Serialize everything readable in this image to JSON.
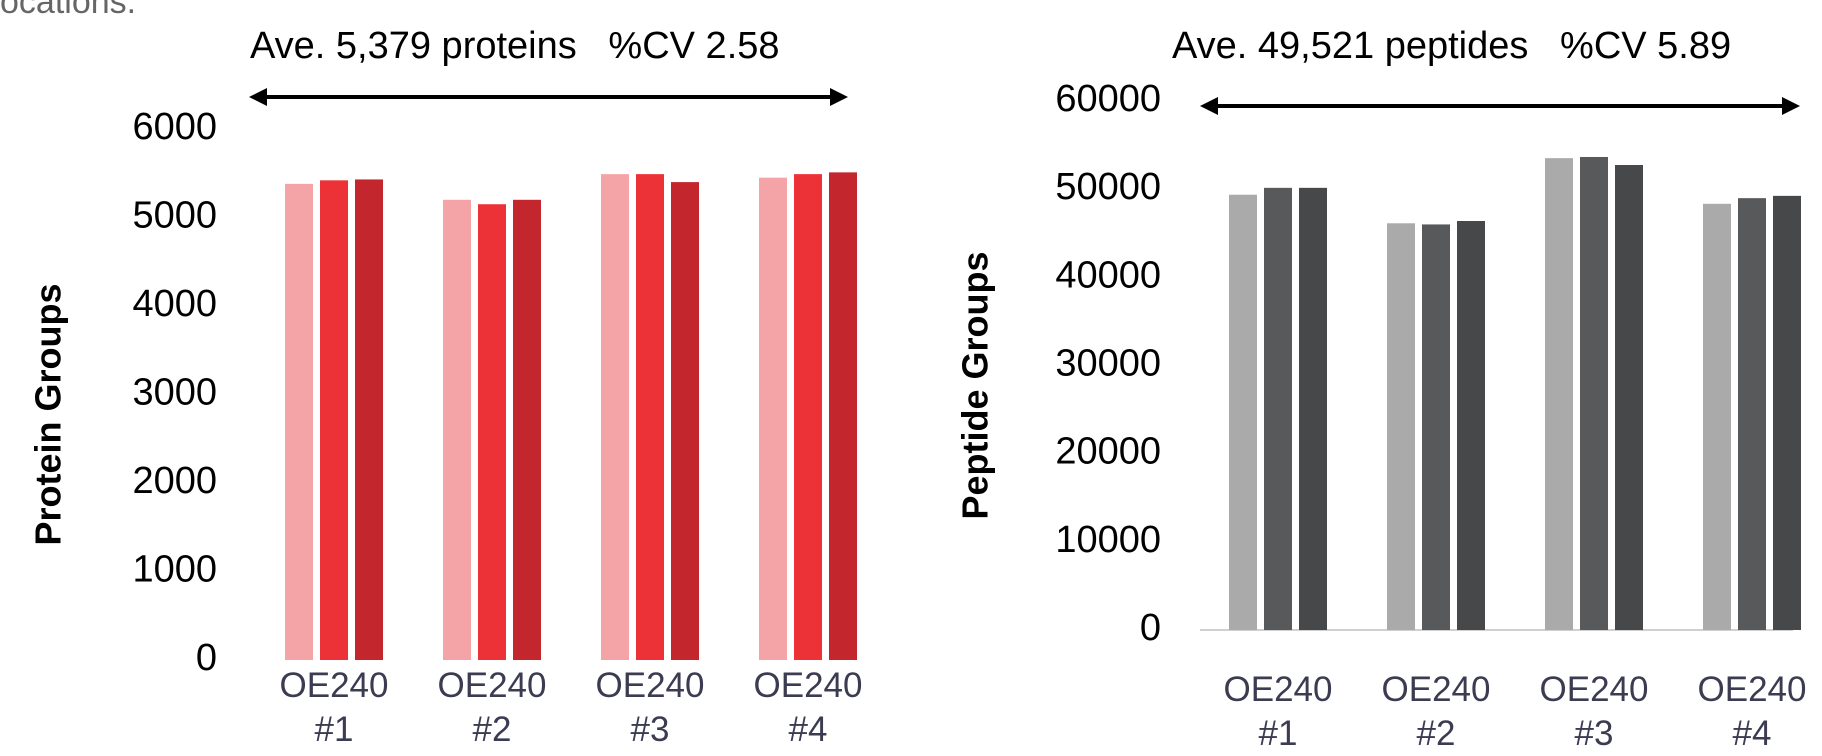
{
  "caption_fragment": "ocations.",
  "chart_data": [
    {
      "type": "bar",
      "title": "Ave. 5,379 proteins   %CV 2.58",
      "y_label": "Protein Groups",
      "categories": [
        "OE240 #1",
        "OE240 #2",
        "OE240 #3",
        "OE240 #4"
      ],
      "series": [
        {
          "color": "#f4a4a6",
          "values": [
            5380,
            5200,
            5490,
            5450
          ]
        },
        {
          "color": "#ec3137",
          "values": [
            5420,
            5150,
            5490,
            5490
          ]
        },
        {
          "color": "#c4262d",
          "values": [
            5430,
            5200,
            5400,
            5510
          ]
        }
      ],
      "ylim": [
        0,
        6000
      ],
      "yticks": [
        0,
        1000,
        2000,
        3000,
        4000,
        5000,
        6000
      ]
    },
    {
      "type": "bar",
      "title": "Ave. 49,521 peptides   %CV 5.89",
      "y_label": "Peptide Groups",
      "categories": [
        "OE240 #1",
        "OE240 #2",
        "OE240 #3",
        "OE240 #4"
      ],
      "series": [
        {
          "color": "#a9aaa9",
          "values": [
            49370,
            46130,
            53520,
            48340
          ]
        },
        {
          "color": "#58595b",
          "values": [
            50150,
            46000,
            53650,
            48980
          ]
        },
        {
          "color": "#474849",
          "values": [
            50150,
            46390,
            52740,
            49240
          ]
        }
      ],
      "ylim": [
        0,
        60000
      ],
      "yticks": [
        0,
        10000,
        20000,
        30000,
        40000,
        50000,
        60000
      ]
    }
  ]
}
